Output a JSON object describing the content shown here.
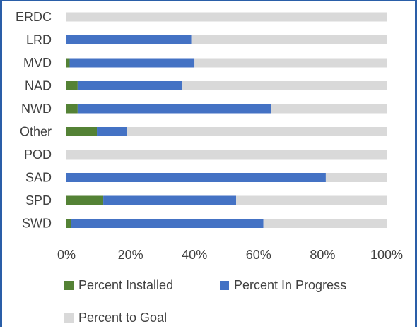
{
  "chart_data": {
    "type": "bar",
    "orientation": "horizontal",
    "stacked": true,
    "categories": [
      "ERDC",
      "LRD",
      "MVD",
      "NAD",
      "NWD",
      "Other",
      "POD",
      "SAD",
      "SPD",
      "SWD"
    ],
    "series": [
      {
        "name": "Percent Installed",
        "color": "#548235",
        "values": [
          0,
          0,
          1,
          3.5,
          3.5,
          9.5,
          0,
          0,
          11.5,
          1.5
        ]
      },
      {
        "name": "Percent In Progress",
        "color": "#4472c4",
        "values": [
          0,
          39,
          39,
          32.5,
          60.5,
          9.5,
          0,
          81,
          41.5,
          60
        ]
      },
      {
        "name": "Percent to Goal",
        "color": "#d9d9d9",
        "values": [
          100,
          61,
          60,
          64,
          36,
          81,
          100,
          19,
          47,
          38.5
        ]
      }
    ],
    "xlim": [
      0,
      100
    ],
    "xticks": [
      "0%",
      "20%",
      "40%",
      "60%",
      "80%",
      "100%"
    ],
    "grid": false,
    "legend_position": "bottom"
  }
}
